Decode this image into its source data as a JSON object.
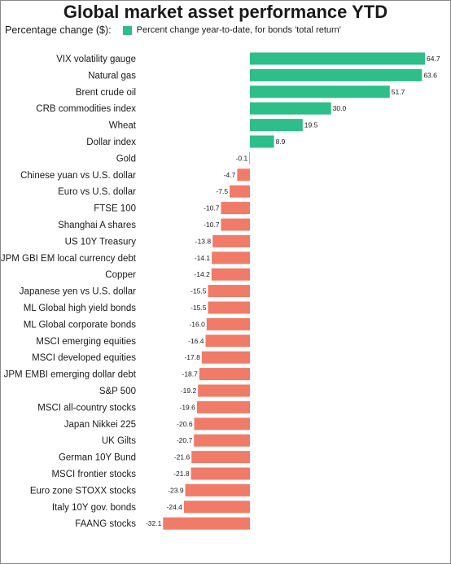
{
  "chart_data": {
    "type": "bar",
    "orientation": "horizontal",
    "title": "Global market asset performance YTD",
    "ylabel": "Percentage change ($):",
    "legend": [
      "Percent change year-to-date, for bonds 'total return'"
    ],
    "categories": [
      "VIX volatility gauge",
      "Natural gas",
      "Brent crude oil",
      "CRB commodities index",
      "Wheat",
      "Dollar index",
      "Gold",
      "Chinese yuan vs U.S. dollar",
      "Euro vs U.S. dollar",
      "FTSE 100",
      "Shanghai A shares",
      "US 10Y Treasury",
      "JPM GBI EM local currency debt",
      "Copper",
      "Japanese yen vs U.S. dollar",
      "ML Global high yield bonds",
      "ML Global corporate bonds",
      "MSCI emerging equities",
      "MSCI developed equities",
      "JPM EMBI emerging dollar debt",
      "S&P 500",
      "MSCI all-country stocks",
      "Japan Nikkei 225",
      "UK Gilts",
      "German 10Y Bund",
      "MSCI frontier stocks",
      "Euro zone STOXX stocks",
      "Italy 10Y gov. bonds",
      "FAANG stocks"
    ],
    "values": [
      64.7,
      63.6,
      51.7,
      30.0,
      19.5,
      8.9,
      -0.1,
      -4.7,
      -7.5,
      -10.7,
      -10.7,
      -13.8,
      -14.1,
      -14.2,
      -15.5,
      -15.5,
      -16.0,
      -16.4,
      -17.8,
      -18.7,
      -19.2,
      -19.6,
      -20.6,
      -20.7,
      -21.6,
      -21.8,
      -23.9,
      -24.4,
      -32.1
    ],
    "value_labels": [
      "64.7",
      "63.6",
      "51.7",
      "30.0",
      "19.5",
      "8.9",
      "-0.1",
      "-4.7",
      "-7.5",
      "-10.7",
      "-10.7",
      "-13.8",
      "-14.1",
      "-14.2",
      "-15.5",
      "-15.5",
      "-16.0",
      "-16.4",
      "-17.8",
      "-18.7",
      "-19.2",
      "-19.6",
      "-20.6",
      "-20.7",
      "-21.6",
      "-21.8",
      "-23.9",
      "-24.4",
      "-32.1"
    ],
    "colors": {
      "positive": "#2dbe8a",
      "negative": "#ef7b68"
    },
    "grid": false
  }
}
